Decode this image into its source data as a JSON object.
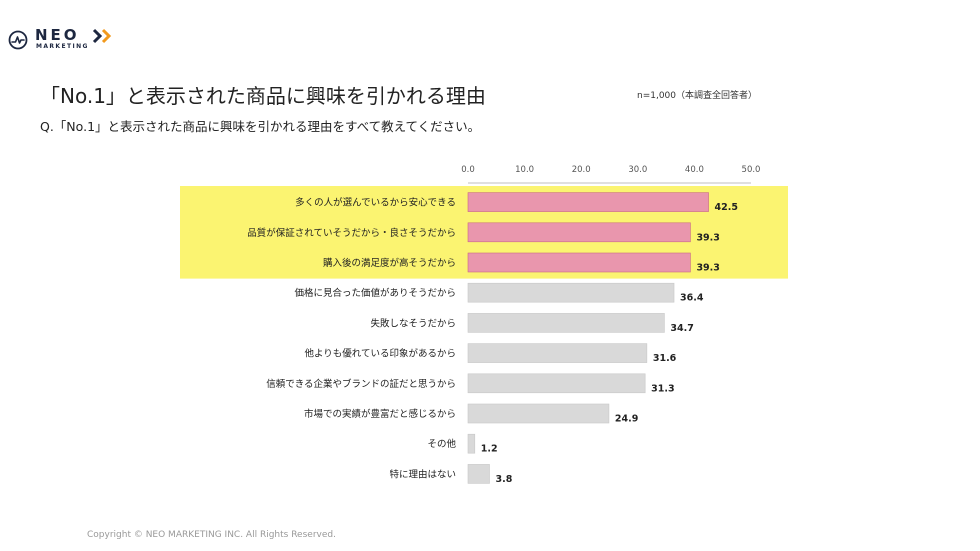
{
  "brand": {
    "logo_text": "NEO",
    "logo_sub": "MARKETING",
    "colors": {
      "navy": "#1d2740",
      "orange": "#f29a1d",
      "highlight": "#fbf471",
      "accent_bar": "#e996ad",
      "gray_bar": "#d9d9d9"
    }
  },
  "header": {
    "title": "「No.1」と表示された商品に興味を引かれる理由",
    "note": "n=1,000（本調査全回答者）",
    "question": "Q.「No.1」と表示された商品に興味を引かれる理由をすべて教えてください。"
  },
  "footer": {
    "copyright": "Copyright © NEO MARKETING INC. All Rights Reserved."
  },
  "chart_data": {
    "type": "bar",
    "orientation": "horizontal",
    "title": "「No.1」と表示された商品に興味を引かれる理由",
    "xlim": [
      0,
      50
    ],
    "ticks": [
      "0.0",
      "10.0",
      "20.0",
      "30.0",
      "40.0",
      "50.0"
    ],
    "grid": false,
    "categories": [
      "多くの人が選んでいるから安心できる",
      "品質が保証されていそうだから・良さそうだから",
      "購入後の満足度が高そうだから",
      "価格に見合った価値がありそうだから",
      "失敗しなそうだから",
      "他よりも優れている印象があるから",
      "信頼できる企業やブランドの証だと思うから",
      "市場での実績が豊富だと感じるから",
      "その他",
      "特に理由はない"
    ],
    "values": [
      42.5,
      39.3,
      39.3,
      36.4,
      34.7,
      31.6,
      31.3,
      24.9,
      1.2,
      3.8
    ],
    "value_labels": [
      "42.5",
      "39.3",
      "39.3",
      "36.4",
      "34.7",
      "31.6",
      "31.3",
      "24.9",
      "1.2",
      "3.8"
    ],
    "highlighted": [
      true,
      true,
      true,
      false,
      false,
      false,
      false,
      false,
      false,
      false
    ]
  }
}
